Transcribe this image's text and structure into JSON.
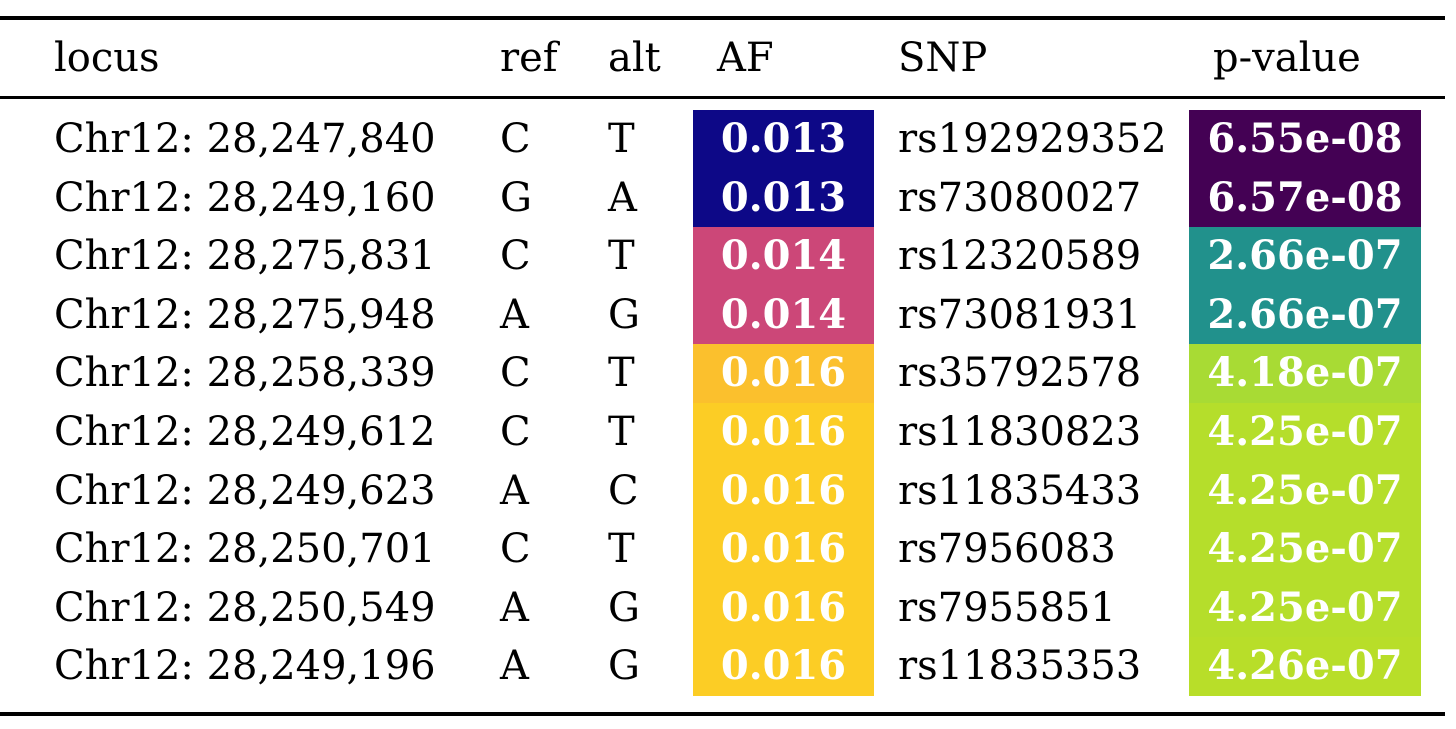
{
  "headers": {
    "locus": "locus",
    "ref": "ref",
    "alt": "alt",
    "af": "AF",
    "snp": "SNP",
    "pvalue": "p-value"
  },
  "rows": [
    {
      "locus": "Chr12: 28,247,840",
      "ref": "C",
      "alt": "T",
      "af": "0.013",
      "af_color": "#0d0887",
      "snp": "rs192929352",
      "pvalue": "6.55e-08",
      "p_color": "#440154"
    },
    {
      "locus": "Chr12: 28,249,160",
      "ref": "G",
      "alt": "A",
      "af": "0.013",
      "af_color": "#0d0887",
      "snp": "rs73080027",
      "pvalue": "6.57e-08",
      "p_color": "#440154"
    },
    {
      "locus": "Chr12: 28,275,831",
      "ref": "C",
      "alt": "T",
      "af": "0.014",
      "af_color": "#cc4778",
      "snp": "rs12320589",
      "pvalue": "2.66e-07",
      "p_color": "#21918c"
    },
    {
      "locus": "Chr12: 28,275,948",
      "ref": "A",
      "alt": "G",
      "af": "0.014",
      "af_color": "#cc4778",
      "snp": "rs73081931",
      "pvalue": "2.66e-07",
      "p_color": "#21918c"
    },
    {
      "locus": "Chr12: 28,258,339",
      "ref": "C",
      "alt": "T",
      "af": "0.016",
      "af_color": "#fbc02d",
      "snp": "rs35792578",
      "pvalue": "4.18e-07",
      "p_color": "#a8db34"
    },
    {
      "locus": "Chr12: 28,249,612",
      "ref": "C",
      "alt": "T",
      "af": "0.016",
      "af_color": "#fccd25",
      "snp": "rs11830823",
      "pvalue": "4.25e-07",
      "p_color": "#b5de2b"
    },
    {
      "locus": "Chr12: 28,249,623",
      "ref": "A",
      "alt": "C",
      "af": "0.016",
      "af_color": "#fccd25",
      "snp": "rs11835433",
      "pvalue": "4.25e-07",
      "p_color": "#b5de2b"
    },
    {
      "locus": "Chr12: 28,250,701",
      "ref": "C",
      "alt": "T",
      "af": "0.016",
      "af_color": "#fccd25",
      "snp": "rs7956083",
      "pvalue": "4.25e-07",
      "p_color": "#b5de2b"
    },
    {
      "locus": "Chr12: 28,250,549",
      "ref": "A",
      "alt": "G",
      "af": "0.016",
      "af_color": "#fccd25",
      "snp": "rs7955851",
      "pvalue": "4.25e-07",
      "p_color": "#b5de2b"
    },
    {
      "locus": "Chr12: 28,249,196",
      "ref": "A",
      "alt": "G",
      "af": "0.016",
      "af_color": "#fccd25",
      "snp": "rs11835353",
      "pvalue": "4.26e-07",
      "p_color": "#b8de29"
    }
  ]
}
